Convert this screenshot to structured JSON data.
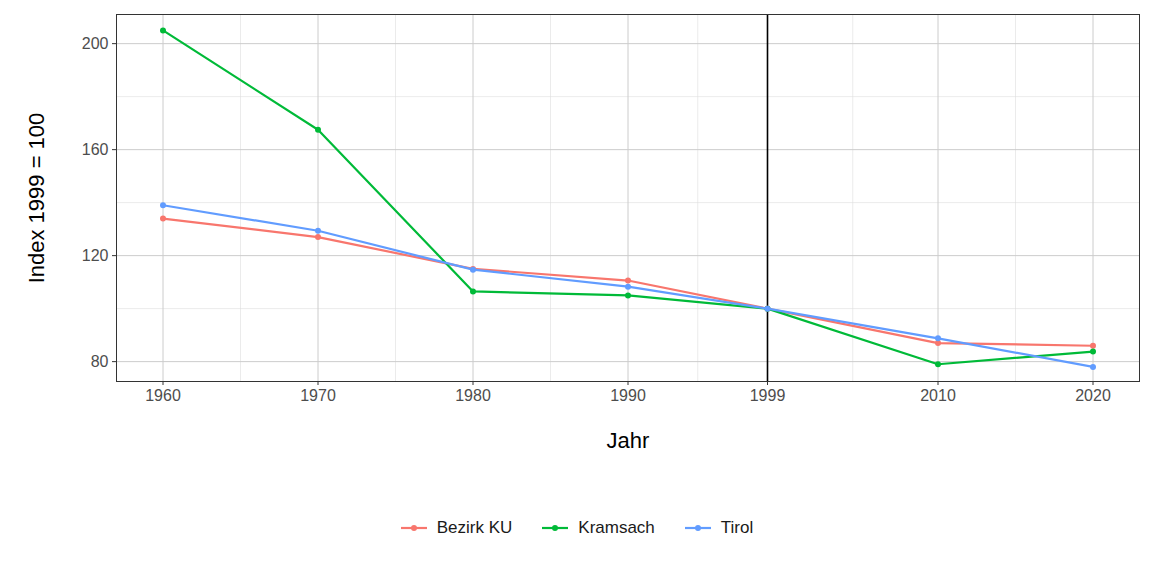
{
  "chart_data": {
    "type": "line",
    "x_label": "Jahr",
    "y_label": "Index 1999 = 100",
    "x": [
      1960,
      1970,
      1980,
      1990,
      1999,
      2010,
      2020
    ],
    "series": [
      {
        "name": "Bezirk KU",
        "color": "#F8766D",
        "values": [
          134,
          127,
          115,
          110.6,
          100,
          87,
          86
        ]
      },
      {
        "name": "Kramsach",
        "color": "#00BA38",
        "values": [
          205,
          167.5,
          106.5,
          105,
          100,
          79,
          83.8
        ]
      },
      {
        "name": "Tirol",
        "color": "#619CFF",
        "values": [
          139,
          129.4,
          114.7,
          108.3,
          100,
          88.8,
          78
        ]
      }
    ],
    "reference_x": 1999,
    "xlim": [
      1957,
      2023
    ],
    "xticks": [
      1960,
      1970,
      1980,
      1990,
      1999,
      2010,
      2020
    ],
    "ylim": [
      72.5,
      211
    ],
    "yticks": [
      80,
      120,
      160,
      200
    ],
    "grid": true,
    "legend": "bottom",
    "marker": "circle",
    "line_style": "solid"
  }
}
